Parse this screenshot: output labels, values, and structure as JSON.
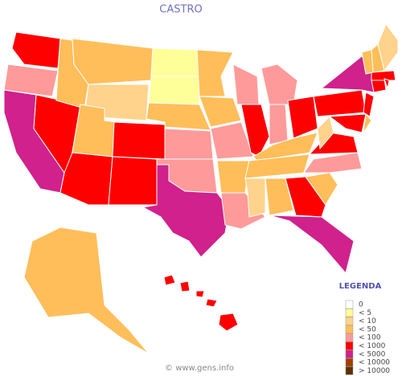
{
  "title": "CASTRO",
  "legend": {
    "title": "LEGENDA",
    "items": [
      {
        "label": "0",
        "color": "#ffffff"
      },
      {
        "label": "< 5",
        "color": "#ffff99"
      },
      {
        "label": "< 10",
        "color": "#ffd38c"
      },
      {
        "label": "< 50",
        "color": "#ffbe5a"
      },
      {
        "label": "< 100",
        "color": "#ff9a9a"
      },
      {
        "label": "< 1000",
        "color": "#ff0000"
      },
      {
        "label": "< 5000",
        "color": "#d0218c"
      },
      {
        "label": "< 10000",
        "color": "#a04000"
      },
      {
        "label": "> 10000",
        "color": "#603000"
      }
    ]
  },
  "map": {
    "region_colors": [
      "#ff0000",
      "#ff9a9a",
      "#d0218c",
      "#ff0000",
      "#ffbe5a",
      "#ffbe5a",
      "#ffd38c",
      "#ffbe5a",
      "#ff0000",
      "#ff0000",
      "#ff0000",
      "#ffff99",
      "#ffff99",
      "#ffbe5a",
      "#ff9a9a",
      "#ff9a9a",
      "#d0218c",
      "#ffbe5a",
      "#ffbe5a",
      "#ff9a9a",
      "#ffbe5a",
      "#ff9a9a",
      "#ff9a9a",
      "#ff0000",
      "#ff9a9a",
      "#ff9a9a",
      "#ff0000",
      "#ffbe5a",
      "#ffbe5a",
      "#ffd38c",
      "#ffbe5a",
      "#ff0000",
      "#d0218c",
      "#ffbe5a",
      "#ff9a9a",
      "#ff0000",
      "#ffd38c",
      "#ff0000",
      "#d0218c",
      "#ff0000",
      "#ff0000",
      "#ffbe5a",
      "#ff0000",
      "#ff0000",
      "#ff0000",
      "#ffbe5a",
      "#ffbe5a",
      "#ffd38c",
      "#ffbe5a",
      "#ff0000",
      "#ff0000",
      "#ff0000",
      "#ff0000",
      "#ff0000"
    ]
  },
  "footer": "© www.gens.info"
}
